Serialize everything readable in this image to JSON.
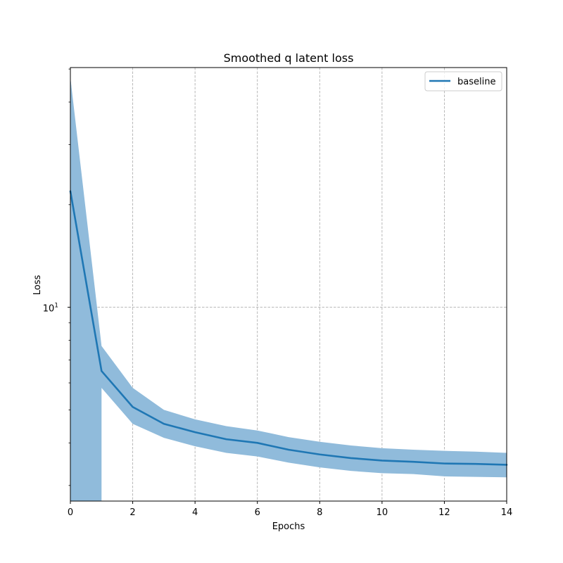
{
  "chart_data": {
    "type": "line",
    "title": "Smoothed q latent loss",
    "xlabel": "Epochs",
    "ylabel": "Loss",
    "yscale": "log",
    "xlim": [
      0,
      14
    ],
    "ylim": [
      2.7,
      50.5
    ],
    "grid": true,
    "legend_position": "top-right",
    "x_ticks": [
      0,
      2,
      4,
      6,
      8,
      10,
      12,
      14
    ],
    "x_tick_labels": [
      "0",
      "2",
      "4",
      "6",
      "8",
      "10",
      "12",
      "14"
    ],
    "y_major_ticks": [
      10
    ],
    "y_major_tick_labels": [
      "10"
    ],
    "y_major_tick_exponents": [
      "1"
    ],
    "y_minor_ticks": [
      3,
      4,
      5,
      6,
      7,
      8,
      9,
      20,
      30,
      40,
      50
    ],
    "x": [
      0,
      1,
      2,
      3,
      4,
      5,
      6,
      7,
      8,
      9,
      10,
      11,
      12,
      13,
      14
    ],
    "series": [
      {
        "name": "baseline",
        "color": "#1f77b4",
        "band_color": "#90bbdb",
        "values": [
          21.9,
          6.5,
          5.1,
          4.55,
          4.3,
          4.1,
          4.0,
          3.82,
          3.7,
          3.61,
          3.55,
          3.52,
          3.48,
          3.47,
          3.45
        ],
        "upper": [
          47.2,
          7.7,
          5.8,
          5.0,
          4.69,
          4.48,
          4.35,
          4.16,
          4.03,
          3.93,
          3.86,
          3.82,
          3.79,
          3.77,
          3.74
        ],
        "lower": [
          2.0,
          5.8,
          4.55,
          4.14,
          3.91,
          3.74,
          3.65,
          3.5,
          3.39,
          3.31,
          3.26,
          3.24,
          3.19,
          3.18,
          3.17
        ]
      }
    ]
  }
}
